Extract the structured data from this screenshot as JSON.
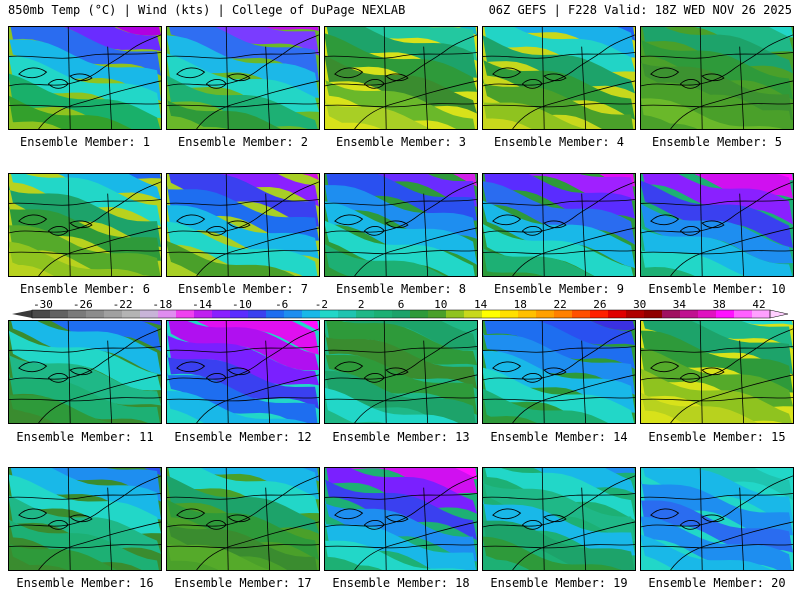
{
  "header": {
    "title_left": "850mb Temp (°C) | Wind (kts) | College of DuPage NEXLAB",
    "title_right": "06Z GEFS | F228 Valid: 18Z WED NOV 26 2025"
  },
  "members": [
    {
      "label": "Ensemble Member: 1",
      "palette": [
        "#b000e0",
        "#6a2cff",
        "#2a6cf0",
        "#19b8e8",
        "#22d7c8",
        "#19b06a",
        "#33a02c",
        "#8fc31f"
      ]
    },
    {
      "label": "Ensemble Member: 2",
      "palette": [
        "#c010e8",
        "#7a3cff",
        "#2f6ef2",
        "#1cb8e8",
        "#23d6c6",
        "#1db074",
        "#2e9a3a",
        "#6ab82a"
      ]
    },
    {
      "label": "Ensemble Member: 3",
      "palette": [
        "#16b8c8",
        "#23c8a0",
        "#1da36a",
        "#2e9a3a",
        "#3a8c2f",
        "#6ab82a",
        "#a8cf25",
        "#d8e21a"
      ]
    },
    {
      "label": "Ensemble Member: 4",
      "palette": [
        "#2060f0",
        "#1ab0ea",
        "#22d4c6",
        "#1da36a",
        "#2e9a3a",
        "#4aa02a",
        "#8fc31f",
        "#c8d81c"
      ]
    },
    {
      "label": "Ensemble Member: 5",
      "palette": [
        "#22d7c8",
        "#1fb887",
        "#1da36a",
        "#2e9a3a",
        "#3c9230",
        "#4aa02a",
        "#6ab82a",
        "#4aa02a"
      ]
    },
    {
      "label": "Ensemble Member: 6",
      "palette": [
        "#1e66f0",
        "#19b8e8",
        "#22d7c8",
        "#1da36a",
        "#2e9a3a",
        "#55aa2a",
        "#8fc31f",
        "#b8d21e"
      ]
    },
    {
      "label": "Ensemble Member: 7",
      "palette": [
        "#d010e0",
        "#8a20ff",
        "#3a40f0",
        "#1e6ef0",
        "#19b8e8",
        "#22d7c8",
        "#4aa02a",
        "#a8cf25"
      ]
    },
    {
      "label": "Ensemble Member: 8",
      "palette": [
        "#d020e8",
        "#6a2cff",
        "#2a50f0",
        "#1e8ef0",
        "#19b8e8",
        "#22d7c8",
        "#1db074",
        "#2e9a3a"
      ]
    },
    {
      "label": "Ensemble Member: 9",
      "palette": [
        "#e010f0",
        "#a020ff",
        "#5a2cff",
        "#2a6cf0",
        "#19b8e8",
        "#22d7c8",
        "#1db074",
        "#2e9a3a"
      ]
    },
    {
      "label": "Ensemble Member: 10",
      "palette": [
        "#ff10ff",
        "#d010f0",
        "#8a20ff",
        "#3a40f0",
        "#1e8ef0",
        "#19b8e8",
        "#22d7c8",
        "#1db074"
      ]
    },
    {
      "label": "Ensemble Member: 11",
      "palette": [
        "#3a40f0",
        "#1e6ef0",
        "#19b8e8",
        "#22d7c8",
        "#1fb887",
        "#1db074",
        "#2e9a3a",
        "#3a8c2f"
      ]
    },
    {
      "label": "Ensemble Member: 12",
      "palette": [
        "#ff10ff",
        "#e010f0",
        "#b010f0",
        "#7a20ff",
        "#3a40f0",
        "#1e6ef0",
        "#19b8e8",
        "#22d7c8"
      ]
    },
    {
      "label": "Ensemble Member: 13",
      "palette": [
        "#1fb887",
        "#1da36a",
        "#2e9a3a",
        "#3a8c2f",
        "#2e9a3a",
        "#1da36a",
        "#22d7c8",
        "#1fb887"
      ]
    },
    {
      "label": "Ensemble Member: 14",
      "palette": [
        "#3a30e0",
        "#2a50f0",
        "#1e6ef0",
        "#1e8ef0",
        "#19b8e8",
        "#22d7c8",
        "#1db074",
        "#2e9a3a"
      ]
    },
    {
      "label": "Ensemble Member: 15",
      "palette": [
        "#22d7c8",
        "#1fb887",
        "#1da36a",
        "#2e9a3a",
        "#55aa2a",
        "#8fc31f",
        "#b8d21e",
        "#d8e21a"
      ]
    },
    {
      "label": "Ensemble Member: 16",
      "palette": [
        "#2a50f0",
        "#1e8ef0",
        "#19b8e8",
        "#22d7c8",
        "#1fb887",
        "#1db074",
        "#2e9a3a",
        "#3a8c2f"
      ]
    },
    {
      "label": "Ensemble Member: 17",
      "palette": [
        "#1e8ef0",
        "#19b8e8",
        "#22d7c8",
        "#1da36a",
        "#2e9a3a",
        "#3a8c2f",
        "#55aa2a",
        "#4aa02a"
      ]
    },
    {
      "label": "Ensemble Member: 18",
      "palette": [
        "#ff10ff",
        "#d010f0",
        "#7a20ff",
        "#3a40f0",
        "#1e8ef0",
        "#19b8e8",
        "#22d7c8",
        "#1db074"
      ]
    },
    {
      "label": "Ensemble Member: 19",
      "palette": [
        "#1e8ef0",
        "#19b8e8",
        "#22d7c8",
        "#1fb887",
        "#19b8e8",
        "#1da36a",
        "#2e9a3a",
        "#1db074"
      ]
    },
    {
      "label": "Ensemble Member: 20",
      "palette": [
        "#22d7c8",
        "#1fc4b0",
        "#19b8e8",
        "#1e8ef0",
        "#2a6cf0",
        "#1e8ef0",
        "#19b8e8",
        "#22d7c8"
      ]
    }
  ],
  "colorbar": {
    "labels": [
      "-30",
      "-26",
      "-22",
      "-18",
      "-14",
      "-10",
      "-6",
      "-2",
      "2",
      "6",
      "10",
      "14",
      "18",
      "22",
      "26",
      "30",
      "34",
      "38",
      "42"
    ],
    "colors": [
      "#4a4a4a",
      "#626262",
      "#7a7a7a",
      "#8c8c8c",
      "#a0a0a0",
      "#b4b4b4",
      "#c8b4d8",
      "#e08cf0",
      "#f040f0",
      "#c020f0",
      "#8a20ff",
      "#5a2cff",
      "#3a40f0",
      "#1e6ef0",
      "#1e8ef0",
      "#19b8e8",
      "#22d7c8",
      "#1fc4b0",
      "#1fb887",
      "#1db074",
      "#1da36a",
      "#2e9a3a",
      "#4aa02a",
      "#8fc31f",
      "#c8d81c",
      "#ffff00",
      "#ffe000",
      "#ffc000",
      "#ffa000",
      "#ff8000",
      "#ff5000",
      "#ff2000",
      "#e00000",
      "#b00000",
      "#900000",
      "#a01060",
      "#c01090",
      "#e010c0",
      "#ff10ff",
      "#ff60ff",
      "#ffa0ff"
    ]
  }
}
